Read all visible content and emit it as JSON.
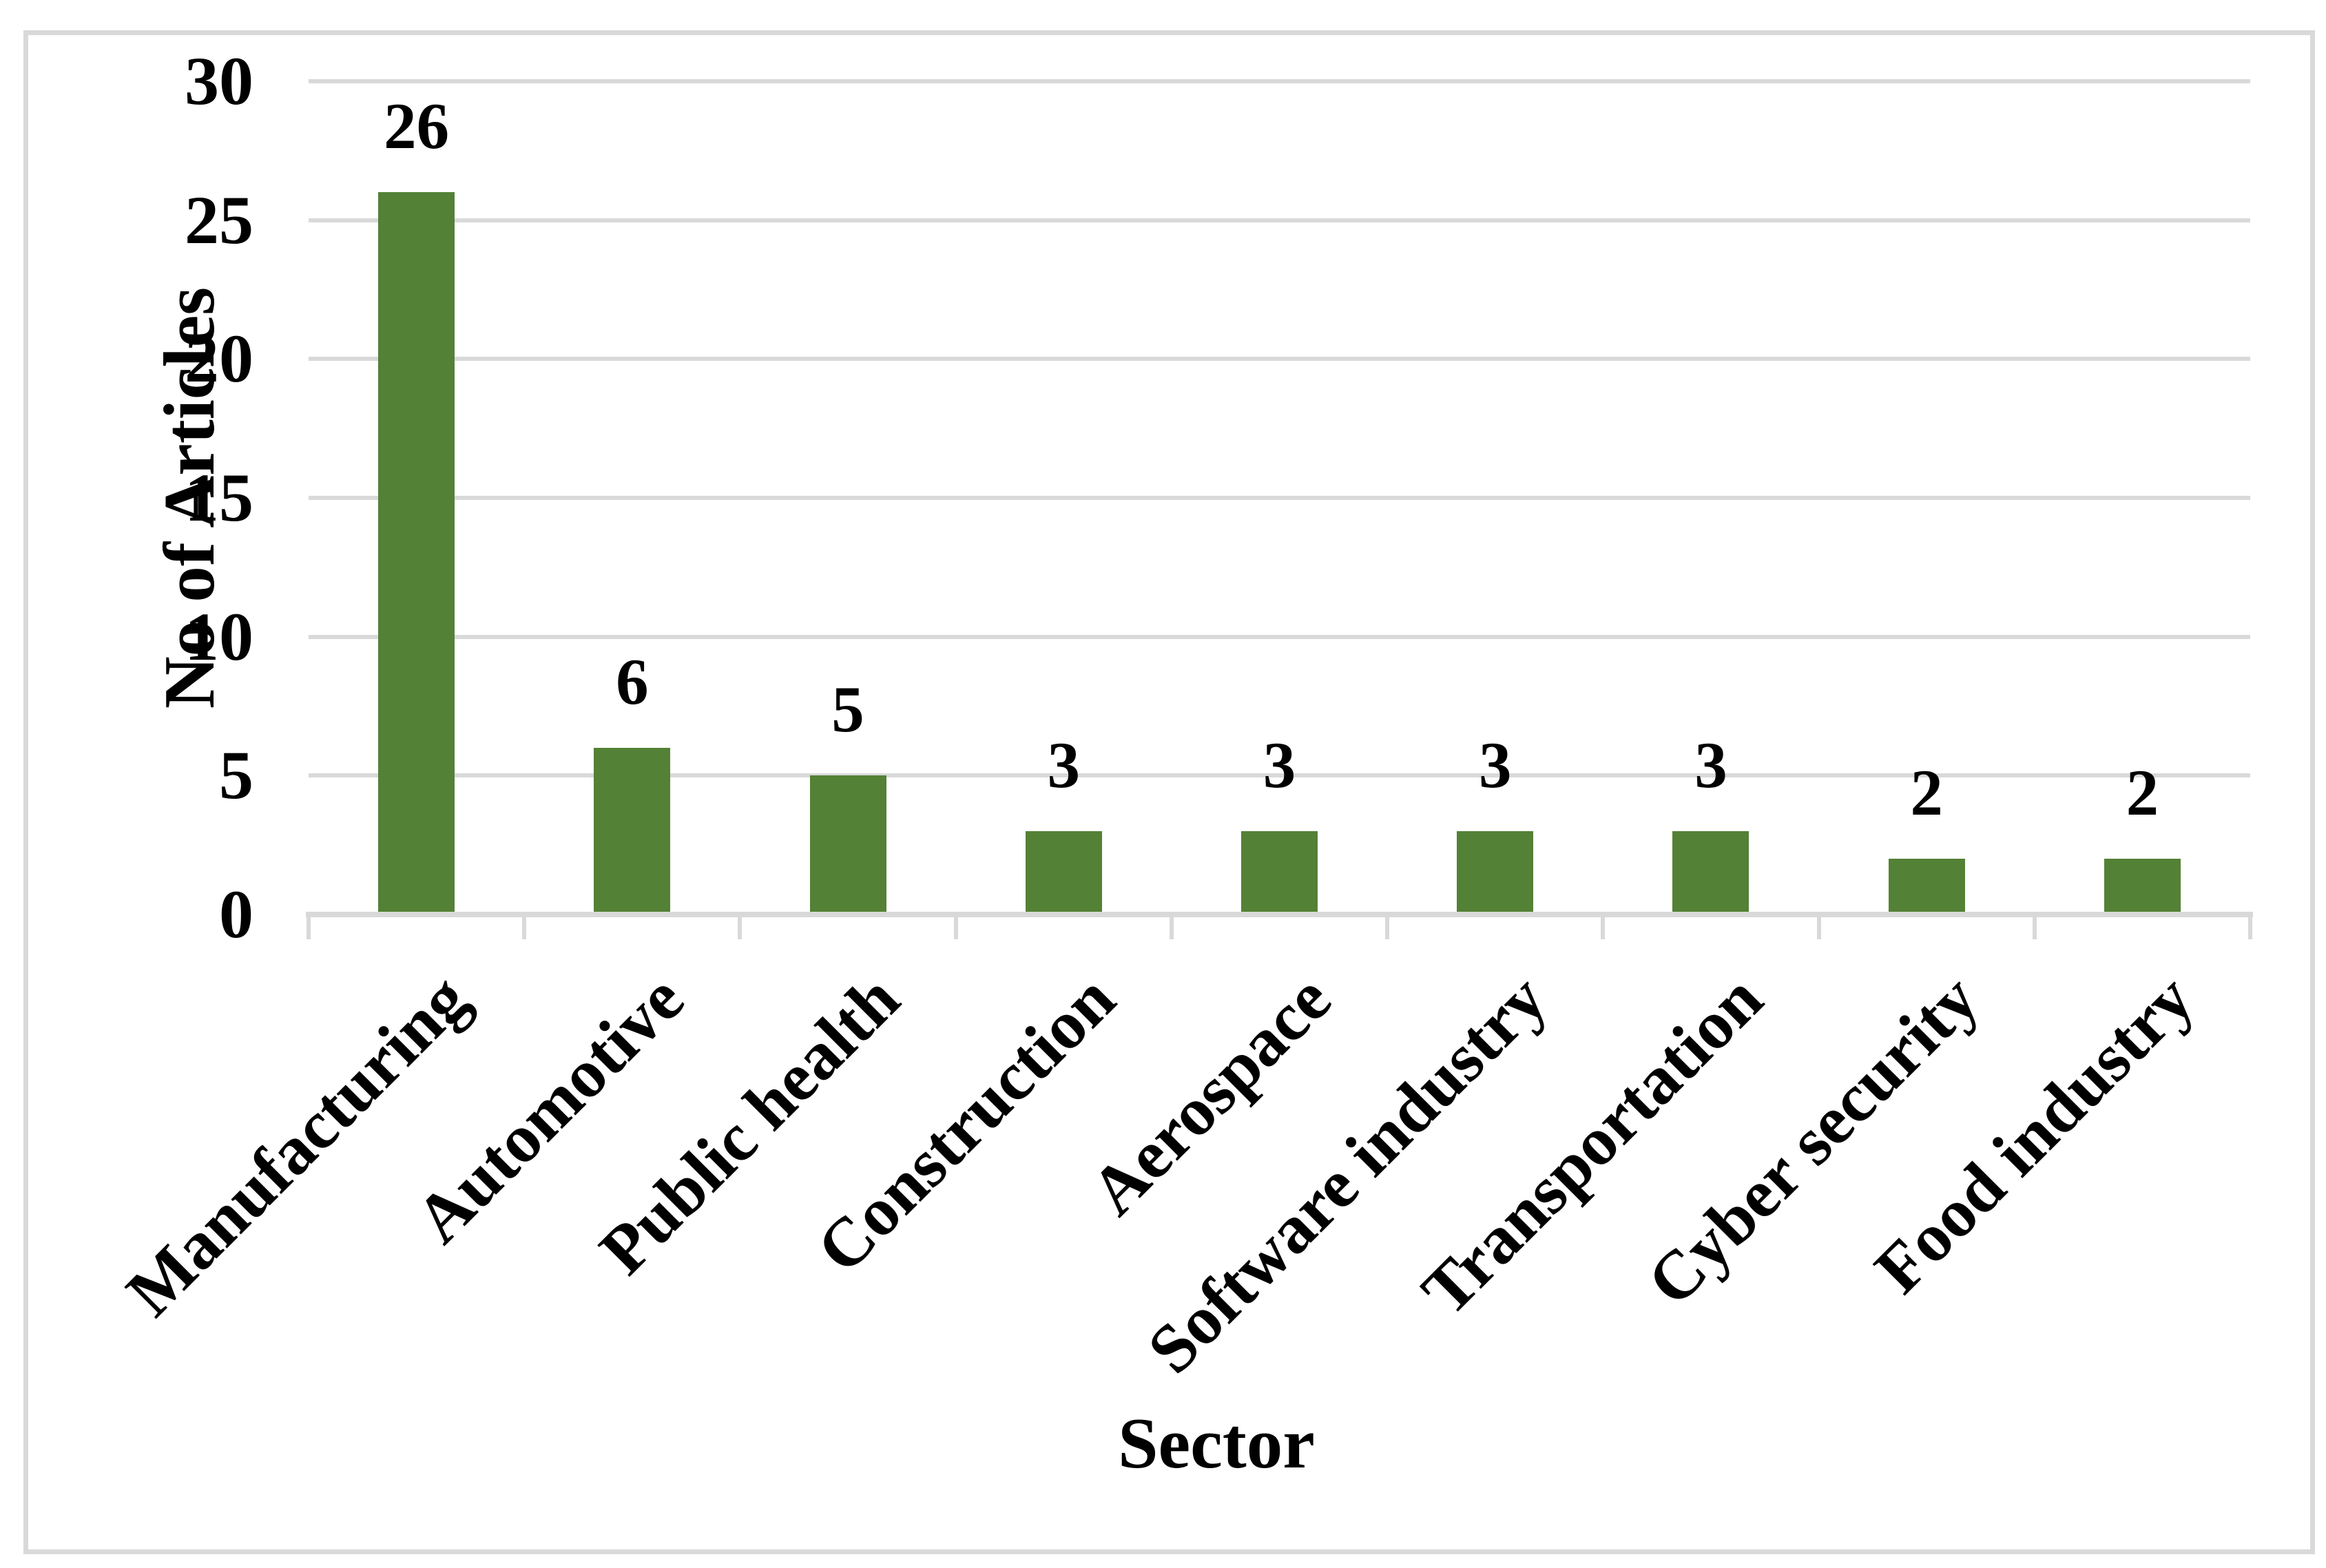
{
  "chart_data": {
    "type": "bar",
    "categories": [
      "Manufacturing",
      "Automotive",
      "Public health",
      "Construction",
      "Aerospace",
      "Software industry",
      "Transportation",
      "Cyber security",
      "Food industry"
    ],
    "values": [
      26,
      6,
      5,
      3,
      3,
      3,
      3,
      2,
      2
    ],
    "xlabel": "Sector",
    "ylabel": "No of Articles",
    "ylim": [
      0,
      30
    ],
    "yticks": [
      0,
      5,
      10,
      15,
      20,
      25,
      30
    ],
    "grid": true,
    "legend_position": "none",
    "data_labels_shown": true
  },
  "colors": {
    "bar": "#538135",
    "gridline": "#D9D9D9",
    "axis": "#D9D9D9",
    "tick": "#D9D9D9",
    "frame_border": "#D9D9D9",
    "text": "#000000",
    "background": "#FFFFFF"
  }
}
